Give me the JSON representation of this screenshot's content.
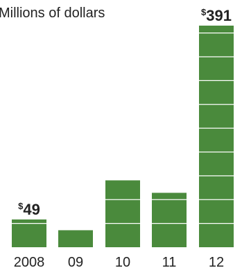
{
  "chart_data": {
    "type": "bar",
    "unit_label": "Millions of dollars",
    "categories": [
      "2008",
      "09",
      "10",
      "11",
      "12"
    ],
    "values": [
      49,
      30,
      118,
      96,
      391
    ],
    "value_labels": [
      {
        "index": 0,
        "prefix": "$",
        "text": "49"
      },
      {
        "index": 4,
        "prefix": "$",
        "text": "391"
      }
    ],
    "segment_step": 42,
    "ylim": [
      0,
      391
    ],
    "grid": false,
    "colors": {
      "bar": "#4a8a3c",
      "segment_line": "#ffffff",
      "text": "#222222"
    }
  }
}
